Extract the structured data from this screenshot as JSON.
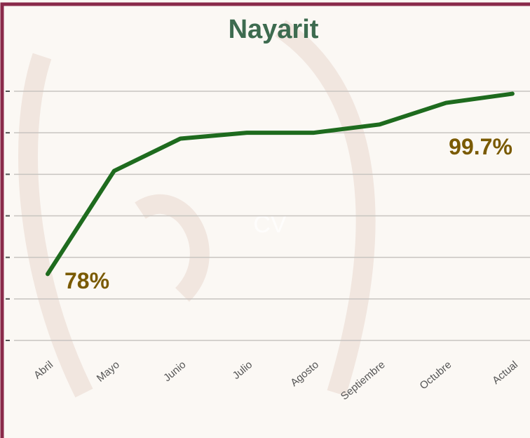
{
  "chart_data": {
    "type": "line",
    "title": "Nayarit",
    "watermark": "CV",
    "categories": [
      "Abril",
      "Mayo",
      "Junio",
      "Julio",
      "Agosto",
      "Septiembre",
      "Octubre",
      "Actual"
    ],
    "series": [
      {
        "name": "Nayarit",
        "color": "#1e6b1e",
        "values": [
          78,
          90.4,
          94.3,
          95.0,
          95.0,
          96.0,
          98.6,
          99.7
        ],
        "value_labels": [
          "78%",
          null,
          null,
          null,
          null,
          null,
          null,
          "99.7%"
        ]
      }
    ],
    "ylim": [
      70,
      100
    ],
    "yticks": [
      70,
      75,
      80,
      85,
      90,
      95,
      100
    ],
    "grid": true
  }
}
